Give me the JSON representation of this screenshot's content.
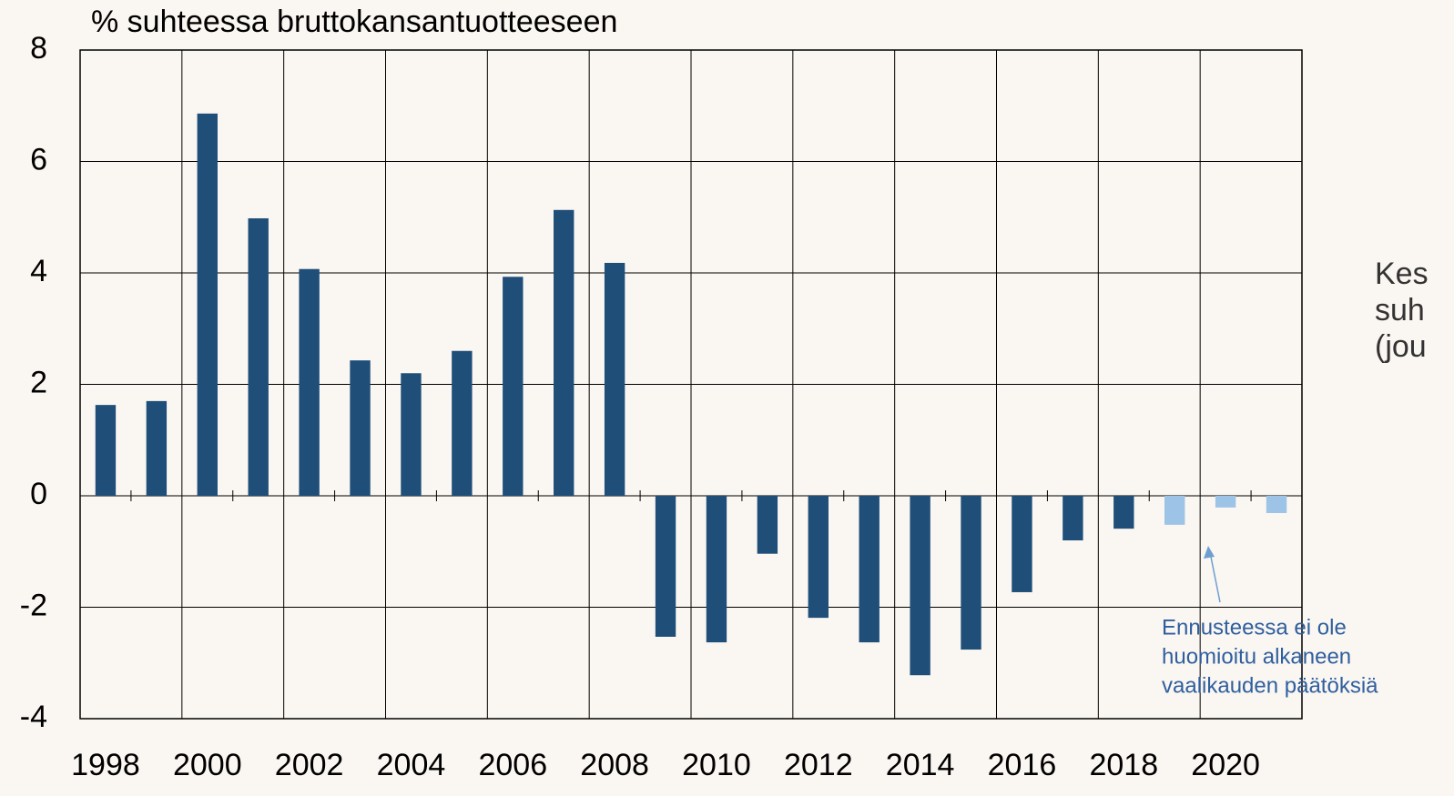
{
  "chart_data": {
    "type": "bar",
    "title": "% suhteessa bruttokansantuotteeseen",
    "categories": [
      "1998",
      null,
      "2000",
      null,
      "2002",
      null,
      "2004",
      null,
      "2006",
      null,
      "2008",
      null,
      "2010",
      null,
      "2012",
      null,
      "2014",
      null,
      "2016",
      null,
      "2018",
      null,
      "2020",
      null
    ],
    "values": [
      1.63,
      1.7,
      6.86,
      4.98,
      4.07,
      2.43,
      2.2,
      2.6,
      3.93,
      5.13,
      4.18,
      -2.53,
      -2.63,
      -1.04,
      -2.19,
      -2.63,
      -3.22,
      -2.76,
      -1.73,
      -0.8,
      -0.59,
      -0.52,
      -0.21,
      -0.31
    ],
    "colors": [
      "#1f4e79",
      "#1f4e79",
      "#1f4e79",
      "#1f4e79",
      "#1f4e79",
      "#1f4e79",
      "#1f4e79",
      "#1f4e79",
      "#1f4e79",
      "#1f4e79",
      "#1f4e79",
      "#1f4e79",
      "#1f4e79",
      "#1f4e79",
      "#1f4e79",
      "#1f4e79",
      "#1f4e79",
      "#1f4e79",
      "#1f4e79",
      "#1f4e79",
      "#1f4e79",
      "#9dc3e6",
      "#9dc3e6",
      "#9dc3e6"
    ],
    "ylim": [
      -4,
      8
    ],
    "yticks": [
      -4,
      -2,
      0,
      2,
      4,
      6,
      8
    ],
    "grid": true,
    "annotation": [
      "Ennusteessa ei ole",
      "huomioitu alkaneen",
      "vaalikauden päätöksiä"
    ],
    "side_text": [
      "Kes",
      "suh",
      "(jou"
    ]
  }
}
